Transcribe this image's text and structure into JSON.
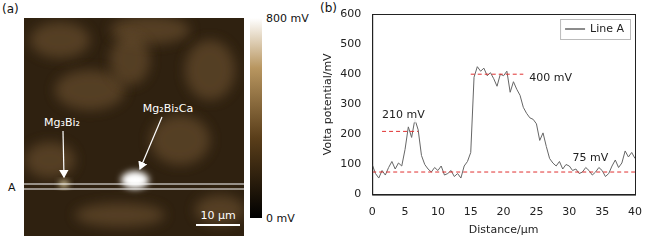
{
  "panel_a": {
    "panel_label": "(a)",
    "phase_labels": [
      "Mg₃Bi₂",
      "Mg₂Bi₂Ca"
    ],
    "line_label": "A",
    "scale_bar": "10 μm",
    "colorbar": {
      "range": [
        0,
        800
      ],
      "ticks": [
        {
          "value": 800,
          "label": "800 mV"
        },
        {
          "value": 0,
          "label": "0 mV"
        }
      ]
    }
  },
  "chart_data": {
    "type": "line",
    "panel_label": "(b)",
    "x_label": "Distance/μm",
    "y_label": "Volta potential/mV",
    "x": [
      0,
      0.5,
      1,
      1.5,
      2,
      2.5,
      3,
      3.5,
      4,
      4.5,
      5,
      5.5,
      6,
      6.5,
      7,
      7.5,
      8,
      8.5,
      9,
      9.5,
      10,
      10.5,
      11,
      11.5,
      12,
      12.5,
      13,
      13.5,
      14,
      14.5,
      15,
      15.5,
      16,
      16.5,
      17,
      17.5,
      18,
      18.5,
      19,
      19.5,
      20,
      20.5,
      21,
      21.5,
      22,
      22.5,
      23,
      23.5,
      24,
      24.5,
      25,
      25.5,
      26,
      26.5,
      27,
      27.5,
      28,
      28.5,
      29,
      29.5,
      30,
      30.5,
      31,
      31.5,
      32,
      32.5,
      33,
      33.5,
      34,
      34.5,
      35,
      35.5,
      36,
      36.5,
      37,
      37.5,
      38,
      38.5,
      39,
      39.5,
      40
    ],
    "series": [
      {
        "name": "Line A",
        "color": "#666666",
        "line_style": "solid",
        "marker": "none",
        "values": [
          100,
          70,
          55,
          80,
          65,
          90,
          110,
          85,
          105,
          95,
          150,
          225,
          190,
          250,
          215,
          130,
          100,
          85,
          75,
          90,
          80,
          95,
          65,
          70,
          80,
          60,
          70,
          55,
          95,
          110,
          140,
          390,
          425,
          410,
          420,
          395,
          405,
          385,
          360,
          400,
          395,
          410,
          340,
          375,
          350,
          330,
          290,
          270,
          255,
          250,
          235,
          180,
          205,
          160,
          120,
          105,
          95,
          110,
          85,
          100,
          95,
          80,
          85,
          70,
          75,
          90,
          80,
          65,
          75,
          90,
          80,
          60,
          70,
          95,
          115,
          90,
          105,
          145,
          125,
          140,
          120
        ]
      }
    ],
    "xlim": [
      0,
      40
    ],
    "xticks": [
      0,
      5,
      10,
      15,
      20,
      25,
      30,
      35,
      40
    ],
    "ylim": [
      0,
      600
    ],
    "yticks": [
      0,
      100,
      200,
      300,
      400,
      500,
      600
    ],
    "grid": false,
    "legend": "upper right",
    "annotations": [
      {
        "text": "210 mV",
        "y": 210,
        "x_range": [
          1.5,
          7
        ],
        "color": "#e03030",
        "line_style": "dashed"
      },
      {
        "text": "400 mV",
        "y": 400,
        "x_range": [
          15,
          23
        ],
        "color": "#e03030",
        "line_style": "dashed"
      },
      {
        "text": "75 mV",
        "y": 75,
        "x_range": [
          0,
          40
        ],
        "color": "#e03030",
        "line_style": "dashed"
      }
    ]
  }
}
